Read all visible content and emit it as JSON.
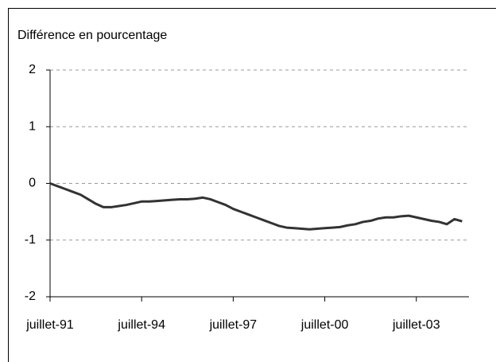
{
  "chart_data": {
    "type": "line",
    "title": "Différence en pourcentage",
    "categories": [
      "juillet-91",
      null,
      null,
      null,
      null,
      null,
      null,
      null,
      null,
      null,
      null,
      null,
      "juillet-94",
      null,
      null,
      null,
      null,
      null,
      null,
      null,
      null,
      null,
      null,
      null,
      "juillet-97",
      null,
      null,
      null,
      null,
      null,
      null,
      null,
      null,
      null,
      null,
      null,
      "juillet-00",
      null,
      null,
      null,
      null,
      null,
      null,
      null,
      null,
      null,
      null,
      null,
      "juillet-03",
      null,
      null,
      null,
      null,
      null,
      null
    ],
    "series": [
      {
        "color": "#333333",
        "values": [
          0,
          -0.05,
          -0.1,
          -0.15,
          -0.2,
          -0.28,
          -0.36,
          -0.42,
          -0.42,
          -0.4,
          -0.38,
          -0.35,
          -0.32,
          -0.32,
          -0.31,
          -0.3,
          -0.29,
          -0.28,
          -0.28,
          -0.27,
          -0.25,
          -0.28,
          -0.33,
          -0.38,
          -0.45,
          -0.5,
          -0.55,
          -0.6,
          -0.65,
          -0.7,
          -0.75,
          -0.78,
          -0.79,
          -0.8,
          -0.81,
          -0.8,
          -0.79,
          -0.78,
          -0.77,
          -0.74,
          -0.72,
          -0.68,
          -0.66,
          -0.62,
          -0.6,
          -0.6,
          -0.58,
          -0.57,
          -0.6,
          -0.63,
          -0.66,
          -0.68,
          -0.72,
          -0.63,
          -0.67
        ]
      }
    ],
    "ylim": [
      -2,
      2
    ],
    "yticks": [
      -2,
      -1,
      0,
      1,
      2
    ],
    "grid": true
  }
}
